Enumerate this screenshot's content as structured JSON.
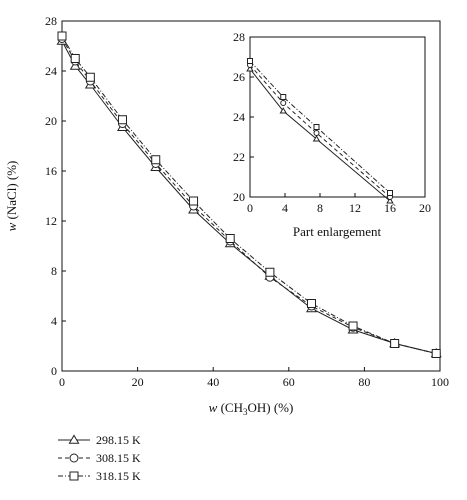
{
  "chart_data": [
    {
      "type": "line",
      "xlabel_prefix": "w",
      "xlabel_rest": " (CH",
      "xlabel_sub": "3",
      "xlabel_end": "OH) (%)",
      "ylabel_prefix": "w",
      "ylabel_rest": " (NaCl) (%)",
      "xlim": [
        0,
        100
      ],
      "ylim": [
        0,
        28
      ],
      "xticks": [
        0,
        20,
        40,
        60,
        80,
        100
      ],
      "yticks": [
        0,
        4,
        8,
        12,
        16,
        20,
        24,
        28
      ],
      "x": [
        0,
        3.5,
        7.5,
        16,
        24.8,
        34.8,
        44.5,
        55,
        66,
        77,
        88,
        99
      ],
      "series": [
        {
          "name": "298.15 K",
          "marker": "triangle",
          "dash": "solid",
          "values": [
            26.4,
            24.4,
            22.9,
            19.5,
            16.3,
            12.9,
            10.2,
            7.6,
            5.0,
            3.3,
            2.2,
            1.4
          ]
        },
        {
          "name": "308.15 K",
          "marker": "circle",
          "dash": "dashed",
          "values": [
            26.6,
            24.8,
            23.2,
            19.8,
            16.6,
            13.2,
            10.4,
            7.5,
            5.2,
            3.5,
            2.2,
            1.4
          ]
        },
        {
          "name": "318.15 K",
          "marker": "square",
          "dash": "dashdot",
          "values": [
            26.8,
            25.0,
            23.5,
            20.1,
            16.9,
            13.6,
            10.6,
            7.9,
            5.4,
            3.6,
            2.2,
            1.4
          ]
        }
      ]
    },
    {
      "type": "line",
      "title": "Part enlargement",
      "xlim": [
        0,
        20
      ],
      "ylim": [
        20,
        28
      ],
      "xticks": [
        0,
        4,
        8,
        12,
        16,
        20
      ],
      "yticks": [
        20,
        22,
        24,
        26,
        28
      ],
      "x": [
        0,
        3.8,
        7.6,
        16
      ],
      "series": [
        {
          "name": "298.15 K",
          "marker": "triangle",
          "dash": "solid",
          "values": [
            26.4,
            24.3,
            22.9,
            19.8
          ]
        },
        {
          "name": "308.15 K",
          "marker": "circle",
          "dash": "dashed",
          "values": [
            26.6,
            24.7,
            23.2,
            20.0
          ]
        },
        {
          "name": "318.15 K",
          "marker": "square",
          "dash": "dashdot",
          "values": [
            26.8,
            25.0,
            23.5,
            20.2
          ]
        }
      ]
    }
  ],
  "legend": [
    {
      "label": "298.15 K",
      "marker": "triangle",
      "dash": "solid"
    },
    {
      "label": "308.15 K",
      "marker": "circle",
      "dash": "dashed"
    },
    {
      "label": "318.15 K",
      "marker": "square",
      "dash": "dashdot"
    }
  ]
}
